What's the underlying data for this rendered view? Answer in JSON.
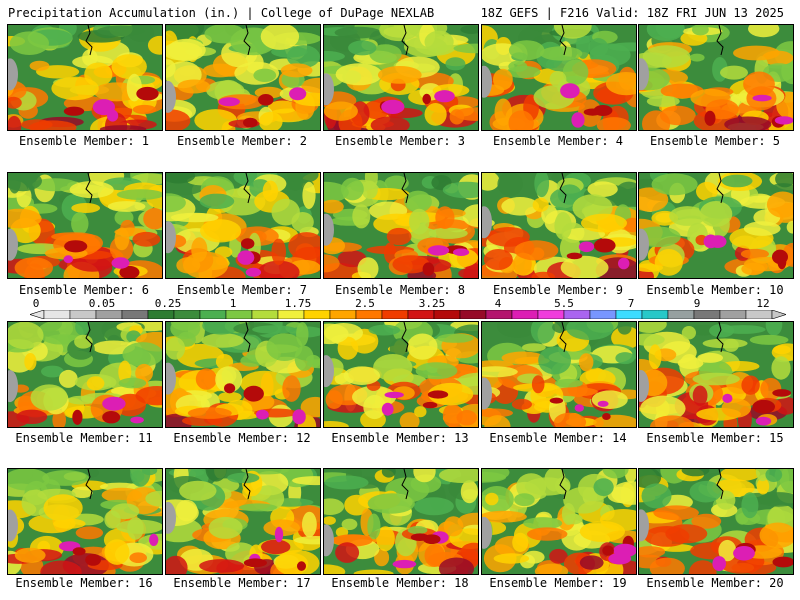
{
  "header": {
    "left": "Precipitation Accumulation (in.) | College of DuPage NEXLAB",
    "right": "18Z GEFS | F216 Valid: 18Z FRI JUN 13 2025"
  },
  "members": [
    "Ensemble Member: 1",
    "Ensemble Member: 2",
    "Ensemble Member: 3",
    "Ensemble Member: 4",
    "Ensemble Member: 5",
    "Ensemble Member: 6",
    "Ensemble Member: 7",
    "Ensemble Member: 8",
    "Ensemble Member: 9",
    "Ensemble Member: 10",
    "Ensemble Member: 11",
    "Ensemble Member: 12",
    "Ensemble Member: 13",
    "Ensemble Member: 14",
    "Ensemble Member: 15",
    "Ensemble Member: 16",
    "Ensemble Member: 17",
    "Ensemble Member: 18",
    "Ensemble Member: 19",
    "Ensemble Member: 20"
  ],
  "colorbar": {
    "tick_labels": [
      "0",
      "0.05",
      "0.25",
      "1",
      "1.75",
      "2.5",
      "3.25",
      "4",
      "5.5",
      "7",
      "9",
      "12"
    ],
    "colors": [
      "#e6e6e6",
      "#c8c8c8",
      "#a0a0a0",
      "#787878",
      "#2e7d32",
      "#3c8c3c",
      "#4caf50",
      "#7cc842",
      "#b4dc3c",
      "#f0f03c",
      "#ffd200",
      "#ffa500",
      "#ff7800",
      "#f03c00",
      "#d21414",
      "#b40a0a",
      "#960a28",
      "#b4146e",
      "#dc1eb4",
      "#f03cdc",
      "#aa64f0",
      "#7896ff",
      "#3cdcff",
      "#28c8c8",
      "#96a0a0",
      "#787878",
      "#a0a0a0",
      "#c8c8c8"
    ]
  }
}
